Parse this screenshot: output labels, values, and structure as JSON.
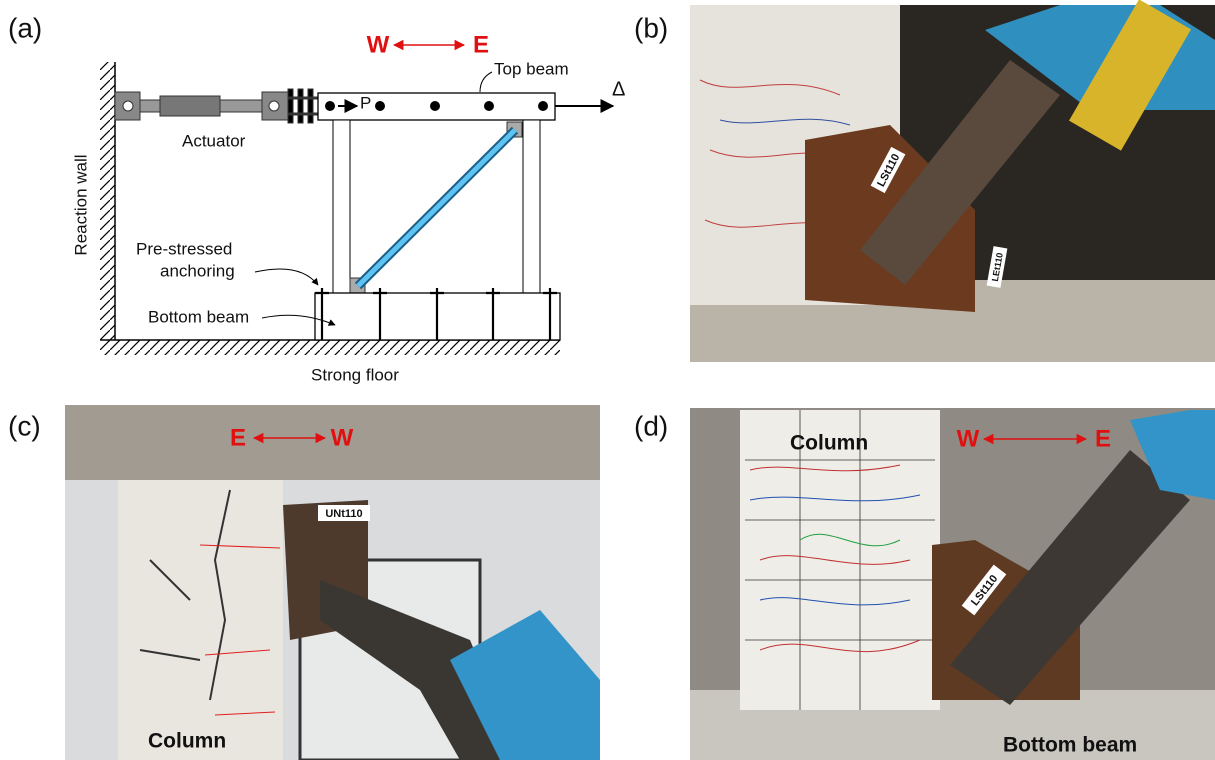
{
  "panels": [
    {
      "label": "(a)",
      "direction": {
        "left": "W",
        "right": "E"
      },
      "texts": {
        "top_beam": "Top beam",
        "delta": "Δ",
        "load": "P",
        "actuator": "Actuator",
        "reaction_wall": "Reaction wall",
        "anchoring": [
          "Pre-stressed",
          "anchoring"
        ],
        "bottom_beam": "Bottom beam",
        "strong_floor": "Strong floor"
      }
    },
    {
      "label": "(b)",
      "tags": [
        "LSt110",
        "LEt110"
      ]
    },
    {
      "label": "(c)",
      "direction": {
        "left": "E",
        "right": "W"
      },
      "tags": [
        "UNt110"
      ],
      "caption": "Column"
    },
    {
      "label": "(d)",
      "direction": {
        "left": "W",
        "right": "E"
      },
      "tags": [
        "LSt110"
      ],
      "captions": [
        "Column",
        "Bottom beam"
      ]
    }
  ]
}
